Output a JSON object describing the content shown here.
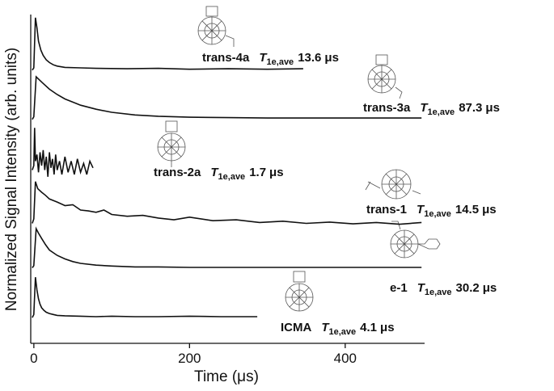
{
  "chart_data": {
    "type": "line",
    "xlabel": "Time (μs)",
    "ylabel": "Normalized Signal Intensity (arb. units)",
    "xlim": [
      -4,
      502
    ],
    "xticks": [
      0,
      200,
      400
    ],
    "ylim": [
      0,
      7.4
    ],
    "color": "#111111",
    "tau_symbol": "T",
    "tau_sub": "1e,ave",
    "unit": "μs",
    "series": [
      {
        "name": "trans-4a",
        "tau": 13.6,
        "x": [
          -2,
          0,
          2,
          4,
          6,
          9,
          12,
          16,
          20,
          25,
          30,
          40,
          60,
          80,
          120,
          160,
          200,
          250,
          300,
          346
        ],
        "values": [
          6.15,
          6.2,
          7.33,
          7.1,
          6.8,
          6.6,
          6.48,
          6.38,
          6.32,
          6.27,
          6.24,
          6.21,
          6.2,
          6.19,
          6.18,
          6.19,
          6.17,
          6.18,
          6.17,
          6.18
        ]
      },
      {
        "name": "trans-3a",
        "tau": 87.3,
        "x": [
          -2,
          0,
          3,
          6,
          10,
          20,
          30,
          40,
          60,
          80,
          100,
          130,
          160,
          200,
          250,
          300,
          350,
          400,
          450,
          498
        ],
        "values": [
          5.04,
          5.1,
          6.0,
          5.95,
          5.88,
          5.72,
          5.6,
          5.5,
          5.36,
          5.27,
          5.2,
          5.14,
          5.11,
          5.09,
          5.08,
          5.07,
          5.07,
          5.07,
          5.07,
          5.07
        ]
      },
      {
        "name": "trans-2a",
        "tau": 1.7,
        "x": [
          -2,
          0,
          1,
          2,
          4,
          6,
          8,
          10,
          12,
          14,
          16,
          18,
          20,
          22,
          24,
          26,
          28,
          30,
          33,
          36,
          40,
          44,
          48,
          52,
          56,
          60,
          64,
          68,
          72,
          76
        ],
        "values": [
          3.9,
          4.0,
          4.85,
          4.1,
          4.25,
          3.85,
          4.3,
          4.0,
          4.35,
          3.9,
          4.2,
          3.75,
          4.3,
          3.95,
          4.15,
          3.8,
          4.25,
          3.9,
          4.1,
          3.8,
          4.2,
          3.85,
          4.1,
          3.8,
          4.15,
          3.85,
          4.05,
          3.8,
          4.1,
          3.95
        ]
      },
      {
        "name": "trans-1",
        "tau": 14.5,
        "x": [
          -2,
          0,
          2,
          5,
          10,
          15,
          20,
          30,
          40,
          50,
          60,
          70,
          80,
          90,
          100,
          120,
          140,
          160,
          180,
          200,
          230,
          260,
          290,
          320,
          350,
          380,
          410,
          440,
          470,
          498
        ],
        "values": [
          2.7,
          2.8,
          3.64,
          3.48,
          3.4,
          3.33,
          3.25,
          3.18,
          3.1,
          3.12,
          3.0,
          2.98,
          2.95,
          3.0,
          2.9,
          2.86,
          2.88,
          2.82,
          2.78,
          2.84,
          2.76,
          2.78,
          2.72,
          2.75,
          2.7,
          2.73,
          2.69,
          2.72,
          2.68,
          2.72
        ]
      },
      {
        "name": "e-1",
        "tau": 30.2,
        "x": [
          -2,
          0,
          3,
          6,
          10,
          15,
          20,
          30,
          40,
          50,
          60,
          80,
          100,
          130,
          160,
          200,
          250,
          300,
          350,
          400,
          450,
          498
        ],
        "values": [
          1.7,
          1.75,
          2.58,
          2.48,
          2.36,
          2.22,
          2.1,
          1.98,
          1.9,
          1.84,
          1.8,
          1.76,
          1.74,
          1.72,
          1.72,
          1.71,
          1.71,
          1.71,
          1.71,
          1.71,
          1.71,
          1.71
        ]
      },
      {
        "name": "ICMA",
        "tau": 4.1,
        "x": [
          -2,
          0,
          2,
          4,
          6,
          8,
          10,
          13,
          16,
          20,
          25,
          30,
          40,
          60,
          80,
          100,
          130,
          160,
          200,
          240,
          287
        ],
        "values": [
          0.58,
          0.65,
          1.49,
          1.2,
          1.0,
          0.88,
          0.8,
          0.74,
          0.7,
          0.67,
          0.65,
          0.63,
          0.62,
          0.61,
          0.6,
          0.61,
          0.6,
          0.6,
          0.61,
          0.6,
          0.6
        ]
      }
    ]
  }
}
